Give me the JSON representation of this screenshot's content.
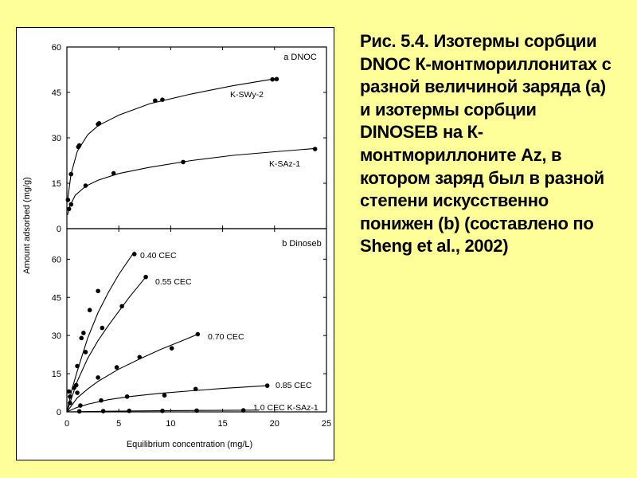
{
  "caption": "Рис. 5.4. Изотермы сорбции DNOC К-монтмориллонитах с разной величиной заряда (а) и изотермы сорбции DINOSEB на К-монтмориллоните Az, в котором заряд был в разной степени искусственно понижен (b) (составлено по Sheng et al., 2002)",
  "chart_data": [
    {
      "type": "scatter",
      "panel_label": "a  DNOC",
      "xlabel": "Equilibrium concentration (mg/L)",
      "ylabel": "Amount adsorbed (mg/g)",
      "xlim": [
        0,
        25
      ],
      "ylim": [
        0,
        60
      ],
      "yticks": [
        0,
        15,
        30,
        45,
        60
      ],
      "series": [
        {
          "name": "K-SWy-2",
          "points": [
            [
              0.1,
              9.5
            ],
            [
              0.4,
              18
            ],
            [
              1.1,
              27
            ],
            [
              1.2,
              27.5
            ],
            [
              3.0,
              34.5
            ],
            [
              3.1,
              34.8
            ],
            [
              8.5,
              42.3
            ],
            [
              9.2,
              42.6
            ],
            [
              19.8,
              49.3
            ],
            [
              20.2,
              49.4
            ]
          ],
          "curve": [
            [
              0.05,
              9
            ],
            [
              0.4,
              18
            ],
            [
              1.0,
              25.5
            ],
            [
              2,
              31
            ],
            [
              3,
              34
            ],
            [
              5,
              37.5
            ],
            [
              8,
              41.3
            ],
            [
              12,
              44.5
            ],
            [
              16,
              47.2
            ],
            [
              20,
              49.5
            ]
          ]
        },
        {
          "name": "K-SAz-1",
          "points": [
            [
              0.2,
              6.5
            ],
            [
              0.4,
              8.0
            ],
            [
              1.8,
              14.2
            ],
            [
              4.5,
              18.3
            ],
            [
              11.2,
              22.0
            ],
            [
              23.9,
              26.3
            ]
          ],
          "curve": [
            [
              0.05,
              4.5
            ],
            [
              0.3,
              7.5
            ],
            [
              0.8,
              11
            ],
            [
              1.8,
              14
            ],
            [
              3,
              16
            ],
            [
              5,
              18.2
            ],
            [
              8,
              20.3
            ],
            [
              12,
              22.5
            ],
            [
              16,
              24.2
            ],
            [
              20,
              25.4
            ],
            [
              24,
              26.5
            ]
          ]
        }
      ]
    },
    {
      "type": "scatter",
      "panel_label": "b  Dinoseb",
      "xlabel": "Equilibrium concentration (mg/L)",
      "ylabel": "Amount adsorbed (mg/g)",
      "xlim": [
        0,
        25
      ],
      "xticks": [
        0,
        5,
        10,
        15,
        20,
        25
      ],
      "ylim": [
        0,
        72
      ],
      "yticks": [
        0,
        15,
        30,
        45,
        60
      ],
      "series": [
        {
          "name": "0.40 CEC",
          "points": [
            [
              0.2,
              8
            ],
            [
              0.7,
              9.5
            ],
            [
              1.0,
              18
            ],
            [
              1.4,
              29
            ],
            [
              1.6,
              31
            ],
            [
              2.2,
              40
            ],
            [
              3.0,
              47.5
            ],
            [
              6.5,
              62
            ]
          ],
          "curve": [
            [
              0,
              0
            ],
            [
              0.5,
              9
            ],
            [
              1,
              16
            ],
            [
              2,
              29
            ],
            [
              3,
              39
            ],
            [
              4,
              47
            ],
            [
              5,
              54
            ],
            [
              6.5,
              63
            ]
          ]
        },
        {
          "name": "0.55 CEC",
          "points": [
            [
              0.3,
              6
            ],
            [
              0.9,
              10.5
            ],
            [
              1.8,
              23.5
            ],
            [
              3.4,
              33
            ],
            [
              5.3,
              41.5
            ],
            [
              7.6,
              53
            ]
          ],
          "curve": [
            [
              0,
              0
            ],
            [
              1,
              12
            ],
            [
              2,
              21
            ],
            [
              3,
              28
            ],
            [
              4,
              34
            ],
            [
              5,
              39.5
            ],
            [
              6,
              45
            ],
            [
              7.6,
              53
            ]
          ]
        },
        {
          "name": "0.70 CEC",
          "points": [
            [
              0.3,
              3.5
            ],
            [
              1.0,
              7.5
            ],
            [
              3.0,
              13.5
            ],
            [
              4.8,
              17.5
            ],
            [
              7.0,
              21.5
            ],
            [
              10.1,
              25
            ],
            [
              12.6,
              30.5
            ]
          ],
          "curve": [
            [
              0,
              0
            ],
            [
              1,
              5.5
            ],
            [
              2,
              9
            ],
            [
              3,
              12
            ],
            [
              5,
              16.8
            ],
            [
              7,
              20.8
            ],
            [
              9,
              24.5
            ],
            [
              11,
              27.8
            ],
            [
              12.6,
              30.5
            ]
          ]
        },
        {
          "name": "0.85 CEC",
          "points": [
            [
              1.3,
              2.5
            ],
            [
              3.3,
              4.5
            ],
            [
              5.8,
              6.0
            ],
            [
              9.4,
              6.5
            ],
            [
              12.4,
              9.0
            ],
            [
              19.3,
              10.3
            ]
          ],
          "curve": [
            [
              0,
              0
            ],
            [
              1,
              1.8
            ],
            [
              2,
              3
            ],
            [
              4,
              4.8
            ],
            [
              6,
              6
            ],
            [
              9,
              7.3
            ],
            [
              12,
              8.3
            ],
            [
              15,
              9.2
            ],
            [
              19.3,
              10.3
            ]
          ]
        },
        {
          "name": "1.0 CEC K-SAz-1",
          "points": [
            [
              1.2,
              0.2
            ],
            [
              3.5,
              0.3
            ],
            [
              6.0,
              0.4
            ],
            [
              9.2,
              0.4
            ],
            [
              12.5,
              0.5
            ],
            [
              17.0,
              0.6
            ]
          ],
          "curve": [
            [
              0,
              0
            ],
            [
              5,
              0.3
            ],
            [
              10,
              0.5
            ],
            [
              15,
              0.6
            ],
            [
              18.5,
              0.7
            ]
          ]
        }
      ]
    }
  ]
}
